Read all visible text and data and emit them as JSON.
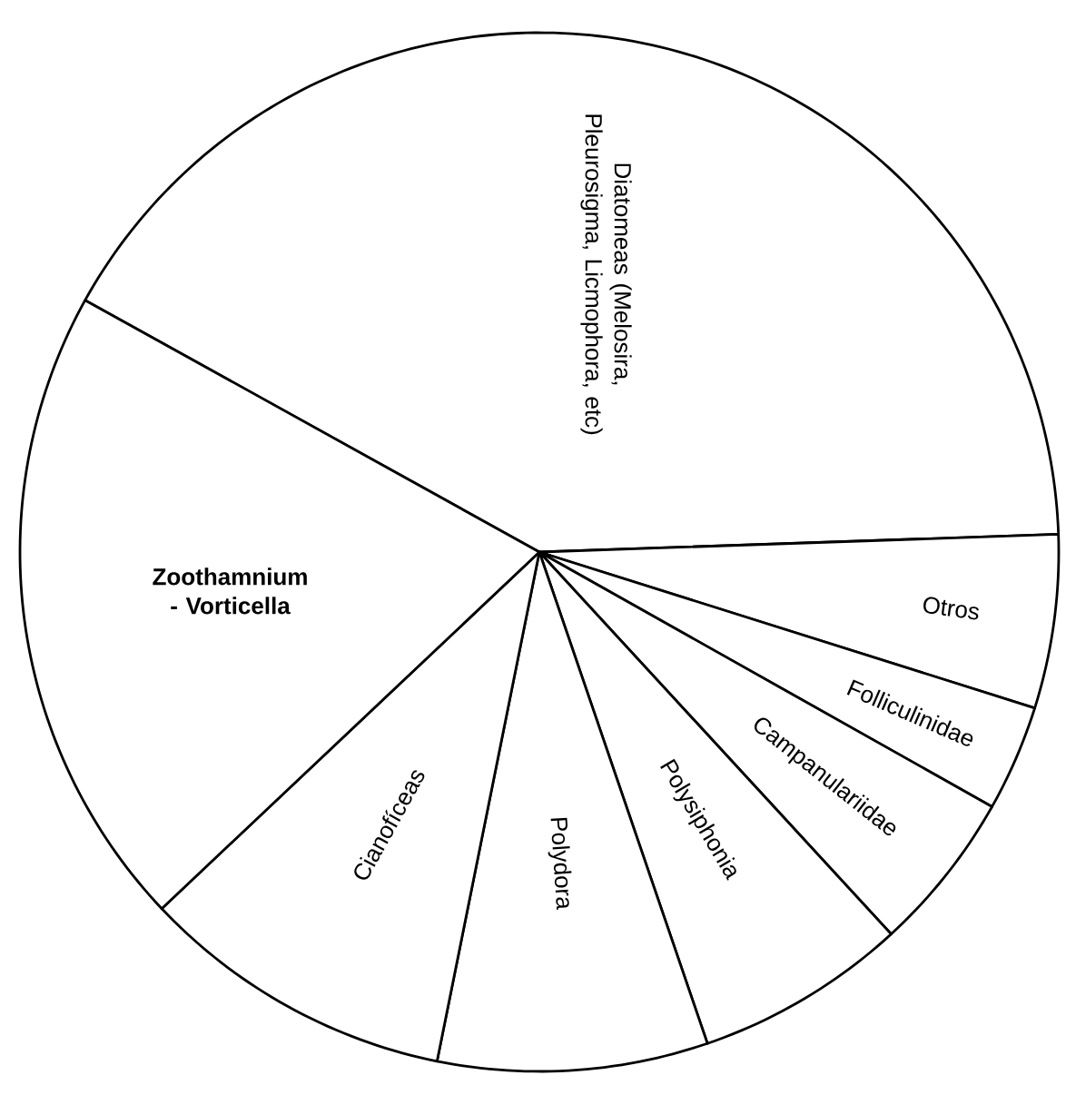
{
  "chart_data": {
    "type": "pie",
    "categories": [
      "Diatomeas (Melosira, Pleurosigma, Licmophora, etc)",
      "Otros",
      "Folliculinidae",
      "Campanulariidae",
      "Polysiphonia",
      "Polydora",
      "Cianofíceas",
      "Zoothamnium - Vorticella"
    ],
    "values": [
      41.4,
      5.4,
      3.3,
      5.0,
      6.6,
      8.4,
      9.8,
      20.1
    ],
    "colors": [
      "#ffffff",
      "#ffffff",
      "#ffffff",
      "#ffffff",
      "#ffffff",
      "#ffffff",
      "#ffffff",
      "#ffffff"
    ]
  }
}
